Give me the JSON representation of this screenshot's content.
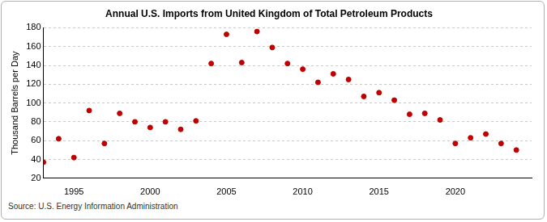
{
  "chart_data": {
    "type": "scatter",
    "title": "Annual U.S. Imports from United Kingdom of Total Petroleum Products",
    "y_label": "Thousand Barrels per Day",
    "source": "Source: U.S. Energy Information Administration",
    "x": [
      1993,
      1994,
      1995,
      1996,
      1997,
      1998,
      1999,
      2000,
      2001,
      2002,
      2003,
      2004,
      2005,
      2006,
      2007,
      2008,
      2009,
      2010,
      2011,
      2012,
      2013,
      2014,
      2015,
      2016,
      2017,
      2018,
      2019,
      2020,
      2021,
      2022,
      2023,
      2024
    ],
    "values": [
      37,
      62,
      42,
      92,
      57,
      89,
      80,
      74,
      80,
      72,
      81,
      142,
      173,
      143,
      176,
      159,
      142,
      136,
      122,
      131,
      125,
      107,
      111,
      103,
      88,
      89,
      82,
      57,
      63,
      67,
      57,
      50
    ],
    "color": "#c00000",
    "marker": "circle",
    "xlim": [
      1993,
      2025
    ],
    "xticks": [
      1995,
      2000,
      2005,
      2010,
      2015,
      2020
    ],
    "ylim": [
      20,
      180
    ],
    "yticks": [
      20,
      40,
      60,
      80,
      100,
      120,
      140,
      160,
      180
    ],
    "grid": true
  }
}
